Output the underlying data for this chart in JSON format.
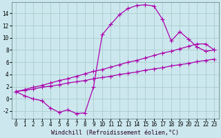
{
  "background_color": "#cce8ee",
  "grid_color": "#aacccc",
  "line_color": "#aa00aa",
  "marker": "+",
  "markersize": 4,
  "linewidth": 0.9,
  "xlabel": "Windchill (Refroidissement éolien,°C)",
  "xlabel_fontsize": 6,
  "tick_fontsize": 5.5,
  "xlim": [
    -0.5,
    23.5
  ],
  "ylim": [
    -3.2,
    15.8
  ],
  "yticks": [
    -2,
    0,
    2,
    4,
    6,
    8,
    10,
    12,
    14
  ],
  "xticks": [
    0,
    1,
    2,
    3,
    4,
    5,
    6,
    7,
    8,
    9,
    10,
    11,
    12,
    13,
    14,
    15,
    16,
    17,
    18,
    19,
    20,
    21,
    22,
    23
  ],
  "curve1_x": [
    0,
    1,
    2,
    3,
    4,
    5,
    6,
    7,
    8,
    9,
    10,
    11,
    12,
    13,
    14,
    15,
    16,
    17,
    18,
    19,
    20,
    21,
    22,
    23
  ],
  "curve1_y": [
    1.2,
    0.5,
    0.0,
    -0.3,
    -1.5,
    -2.2,
    -1.8,
    -2.4,
    -2.3,
    2.0,
    10.5,
    12.2,
    13.8,
    14.8,
    15.3,
    15.4,
    15.2,
    13.0,
    9.5,
    11.0,
    9.8,
    8.5,
    7.8,
    8.0
  ],
  "curve2_x": [
    0,
    1,
    2,
    3,
    4,
    5,
    6,
    7,
    8,
    9,
    10,
    11,
    12,
    13,
    14,
    15,
    16,
    17,
    18,
    19,
    20,
    21,
    22,
    23
  ],
  "curve2_y": [
    1.2,
    1.5,
    1.9,
    2.2,
    2.6,
    3.0,
    3.3,
    3.7,
    4.1,
    4.5,
    4.8,
    5.2,
    5.6,
    6.0,
    6.3,
    6.7,
    7.1,
    7.5,
    7.8,
    8.2,
    8.6,
    9.0,
    9.0,
    8.0
  ],
  "curve3_x": [
    0,
    1,
    2,
    3,
    4,
    5,
    6,
    7,
    8,
    9,
    10,
    11,
    12,
    13,
    14,
    15,
    16,
    17,
    18,
    19,
    20,
    21,
    22,
    23
  ],
  "curve3_y": [
    1.2,
    1.4,
    1.6,
    1.9,
    2.1,
    2.3,
    2.6,
    2.8,
    3.0,
    3.3,
    3.5,
    3.7,
    4.0,
    4.2,
    4.4,
    4.7,
    4.9,
    5.1,
    5.4,
    5.6,
    5.8,
    6.1,
    6.3,
    6.5
  ]
}
